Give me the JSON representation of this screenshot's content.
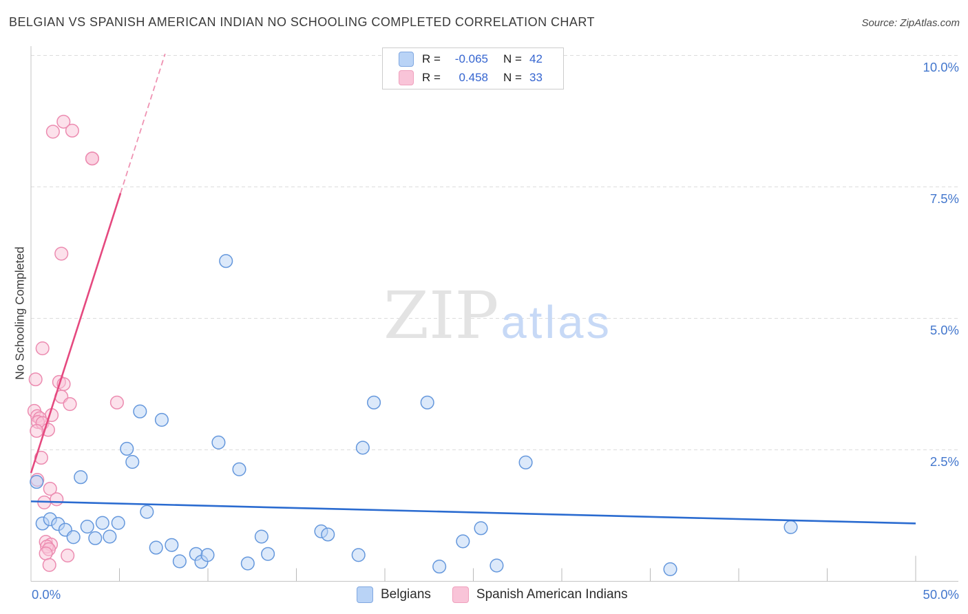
{
  "title": "BELGIAN VS SPANISH AMERICAN INDIAN NO SCHOOLING COMPLETED CORRELATION CHART",
  "source": "Source: ZipAtlas.com",
  "y_axis_label": "No Schooling Completed",
  "watermark": {
    "zip": "ZIP",
    "atlas": "atlas"
  },
  "stats_legend": {
    "rows": [
      {
        "series": "Belgians",
        "r_label": "R =",
        "r_value": "-0.065",
        "n_label": "N =",
        "n_value": "42"
      },
      {
        "series": "Spanish American Indians",
        "r_label": "R =",
        "r_value": "0.458",
        "n_label": "N =",
        "n_value": "33"
      }
    ]
  },
  "axes": {
    "x_tick_labels": [
      "0.0%",
      "50.0%"
    ],
    "y_tick_labels": [
      "10.0%",
      "7.5%",
      "5.0%",
      "2.5%"
    ],
    "y_gridlines_pct": [
      10,
      7.5,
      5,
      2.5
    ],
    "x_minor_tick_step_pct": 5,
    "x_range_pct": [
      0,
      50
    ],
    "y_range_pct": [
      0,
      10.5
    ]
  },
  "bottom_legend": [
    {
      "label": "Belgians"
    },
    {
      "label": "Spanish American Indians"
    }
  ],
  "chart_data": {
    "type": "scatter",
    "title": "Belgian vs Spanish American Indian No Schooling Completed Correlation Chart",
    "xlim": [
      0,
      50
    ],
    "ylim": [
      0,
      10.5
    ],
    "x_unit": "percent",
    "y_unit": "percent",
    "ylabel": "No Schooling Completed",
    "grid": "horizontal-dashed",
    "series": [
      {
        "name": "Belgians",
        "R": -0.065,
        "N": 42,
        "marker_fill": "#b9d3f6",
        "marker_stroke": "#6497dc",
        "points": [
          [
            0.32,
            1.89
          ],
          [
            2.81,
            1.98
          ],
          [
            0.65,
            1.1
          ],
          [
            1.08,
            1.18
          ],
          [
            1.53,
            1.09
          ],
          [
            1.94,
            0.98
          ],
          [
            2.4,
            0.84
          ],
          [
            3.18,
            1.04
          ],
          [
            3.63,
            0.82
          ],
          [
            4.04,
            1.11
          ],
          [
            4.45,
            0.85
          ],
          [
            4.93,
            1.11
          ],
          [
            5.42,
            2.52
          ],
          [
            5.73,
            2.27
          ],
          [
            6.16,
            3.23
          ],
          [
            7.39,
            3.07
          ],
          [
            6.55,
            1.32
          ],
          [
            7.07,
            0.64
          ],
          [
            7.95,
            0.69
          ],
          [
            8.4,
            0.38
          ],
          [
            9.33,
            0.52
          ],
          [
            9.63,
            0.37
          ],
          [
            9.98,
            0.5
          ],
          [
            10.6,
            2.64
          ],
          [
            11.02,
            6.09
          ],
          [
            11.77,
            2.13
          ],
          [
            12.25,
            0.34
          ],
          [
            13.03,
            0.85
          ],
          [
            13.39,
            0.52
          ],
          [
            16.4,
            0.95
          ],
          [
            16.78,
            0.89
          ],
          [
            18.51,
            0.5
          ],
          [
            18.75,
            2.54
          ],
          [
            19.38,
            3.4
          ],
          [
            22.4,
            3.4
          ],
          [
            23.08,
            0.28
          ],
          [
            24.41,
            0.76
          ],
          [
            25.43,
            1.01
          ],
          [
            26.32,
            0.3
          ],
          [
            27.96,
            2.26
          ],
          [
            36.13,
            0.23
          ],
          [
            42.94,
            1.03
          ]
        ]
      },
      {
        "name": "Spanish American Indians",
        "R": 0.458,
        "N": 33,
        "marker_fill": "#f9c4d8",
        "marker_stroke": "#ec8bb0",
        "points": [
          [
            1.24,
            8.55
          ],
          [
            1.84,
            8.74
          ],
          [
            2.33,
            8.57
          ],
          [
            3.46,
            8.04
          ],
          [
            3.46,
            8.04
          ],
          [
            1.72,
            6.23
          ],
          [
            0.65,
            4.43
          ],
          [
            0.26,
            3.84
          ],
          [
            1.59,
            3.79
          ],
          [
            1.85,
            3.75
          ],
          [
            1.72,
            3.51
          ],
          [
            2.2,
            3.37
          ],
          [
            4.86,
            3.4
          ],
          [
            0.19,
            3.24
          ],
          [
            1.17,
            3.16
          ],
          [
            0.35,
            3.14
          ],
          [
            0.5,
            3.1
          ],
          [
            0.39,
            3.03
          ],
          [
            0.65,
            3.01
          ],
          [
            0.97,
            2.88
          ],
          [
            0.32,
            2.86
          ],
          [
            0.58,
            2.35
          ],
          [
            0.36,
            1.93
          ],
          [
            1.08,
            1.76
          ],
          [
            1.45,
            1.56
          ],
          [
            0.75,
            1.5
          ],
          [
            0.84,
            0.75
          ],
          [
            1.13,
            0.7
          ],
          [
            0.9,
            0.66
          ],
          [
            1.01,
            0.61
          ],
          [
            0.84,
            0.53
          ],
          [
            2.07,
            0.49
          ],
          [
            1.04,
            0.31
          ]
        ]
      }
    ],
    "trendlines": [
      {
        "series": "Belgians",
        "style": "solid",
        "color": "#2a6bd0",
        "from": [
          0,
          1.52
        ],
        "to": [
          50,
          1.1
        ]
      },
      {
        "series": "Spanish American Indians",
        "style": "solid",
        "color": "#e5497f",
        "from": [
          0,
          2.06
        ],
        "to": [
          5.06,
          7.38
        ]
      },
      {
        "series": "Spanish American Indians",
        "style": "dashed",
        "color": "#e5497f",
        "from": [
          5.06,
          7.38
        ],
        "to": [
          7.58,
          10.03
        ]
      }
    ]
  }
}
